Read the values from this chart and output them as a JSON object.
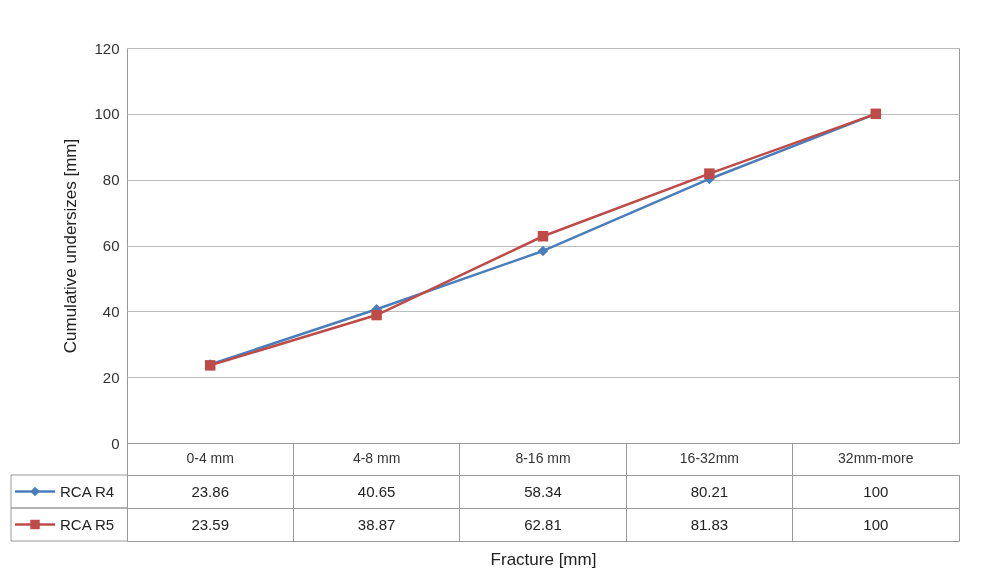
{
  "chart_data": {
    "type": "line",
    "xlabel": "Fracture [mm]",
    "ylabel": "Cumulative undersizes [mm]",
    "categories": [
      "0-4 mm",
      "4-8 mm",
      "8-16 mm",
      "16-32mm",
      "32mm-more"
    ],
    "series": [
      {
        "name": "RCA R4",
        "color": "#4a7ebb",
        "marker": "diamond",
        "values": [
          23.86,
          40.65,
          58.34,
          80.21,
          100
        ]
      },
      {
        "name": "RCA R5",
        "color": "#be4b48",
        "marker": "square",
        "values": [
          23.59,
          38.87,
          62.81,
          81.83,
          100
        ]
      }
    ],
    "ylim": [
      0,
      120
    ],
    "yticks": [
      0,
      20,
      40,
      60,
      80,
      100,
      120
    ],
    "grid": "y",
    "legend": "bottom",
    "data_labels": true
  }
}
